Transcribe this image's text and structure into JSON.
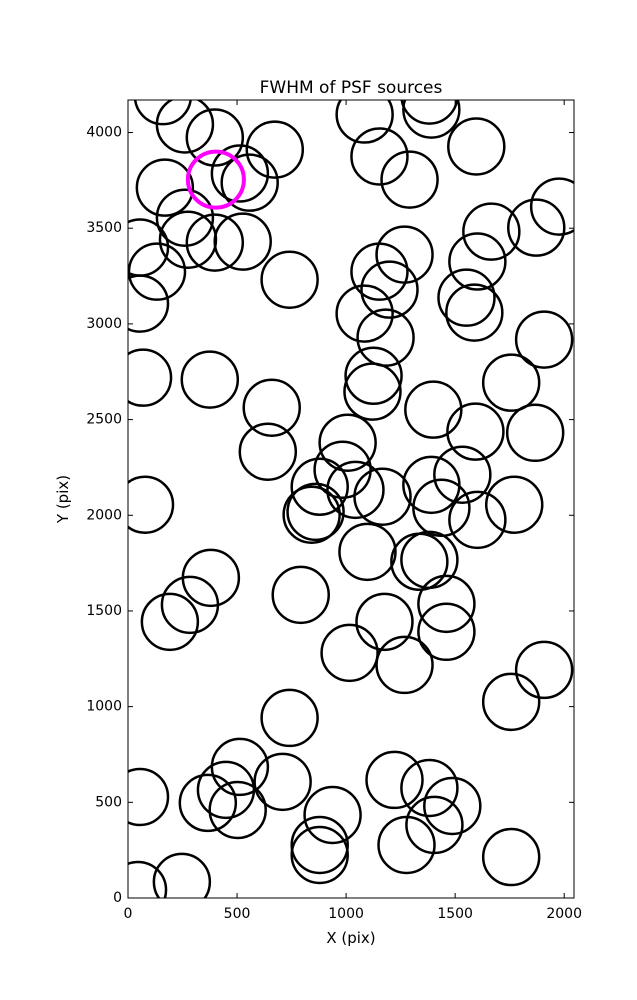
{
  "chart_data": {
    "type": "scatter",
    "title": "FWHM of PSF sources",
    "x_label": "X (pix)",
    "y_label": "Y (pix)",
    "xlim": [
      0,
      2045
    ],
    "ylim": [
      0,
      4170
    ],
    "xticks": [
      0,
      500,
      1000,
      1500,
      2000
    ],
    "yticks": [
      0,
      500,
      1000,
      1500,
      2000,
      2500,
      3000,
      3500,
      4000
    ],
    "series": [
      {
        "color": "#000000",
        "x": [
          160,
          261,
          398,
          169,
          513,
          558,
          673,
          261,
          275,
          398,
          526,
          55,
          133,
          55,
          741,
          69,
          375,
          659,
          641,
          1007,
          984,
          879,
          842,
          860,
          1043,
          1167,
          78,
          380,
          284,
          192,
          792,
          1098,
          1336,
          1382,
          1391,
          1437,
          1533,
          1593,
          1602,
          1771,
          1867,
          1757,
          1908,
          1400,
          1126,
          1121,
          1181,
          1085,
          1153,
          1199,
          1268,
          1153,
          1291,
          1085,
          1391,
          1382,
          1597,
          1666,
          1872,
          1977,
          1602,
          1552,
          1588,
          1460,
          1460,
          1176,
          1016,
          1268,
          1908,
          1757,
          741,
          513,
          449,
          366,
          503,
          709,
          55,
          938,
          879,
          879,
          1222,
          1382,
          1487,
          1405,
          1277,
          1757,
          247,
          46
        ],
        "y": [
          4190,
          4042,
          3974,
          3712,
          3786,
          3738,
          3911,
          3555,
          3440,
          3425,
          3430,
          3399,
          3273,
          3106,
          3231,
          2719,
          2709,
          2562,
          2332,
          2379,
          2238,
          2149,
          2003,
          2018,
          2133,
          2097,
          2055,
          1673,
          1532,
          1443,
          1584,
          1809,
          1757,
          1767,
          2159,
          2039,
          2212,
          2437,
          1976,
          2055,
          2431,
          2693,
          2918,
          2552,
          2729,
          2646,
          2928,
          3054,
          3273,
          3179,
          3362,
          3875,
          3754,
          4094,
          4120,
          4193,
          3927,
          3482,
          3503,
          3613,
          3326,
          3137,
          3059,
          1537,
          1391,
          1443,
          1281,
          1218,
          1192,
          1025,
          941,
          685,
          565,
          497,
          460,
          607,
          528,
          434,
          277,
          225,
          617,
          575,
          481,
          382,
          277,
          214,
          84,
          42
        ]
      },
      {
        "color": "#ff00ff",
        "x": [
          403
        ],
        "y": [
          3754
        ]
      }
    ]
  }
}
